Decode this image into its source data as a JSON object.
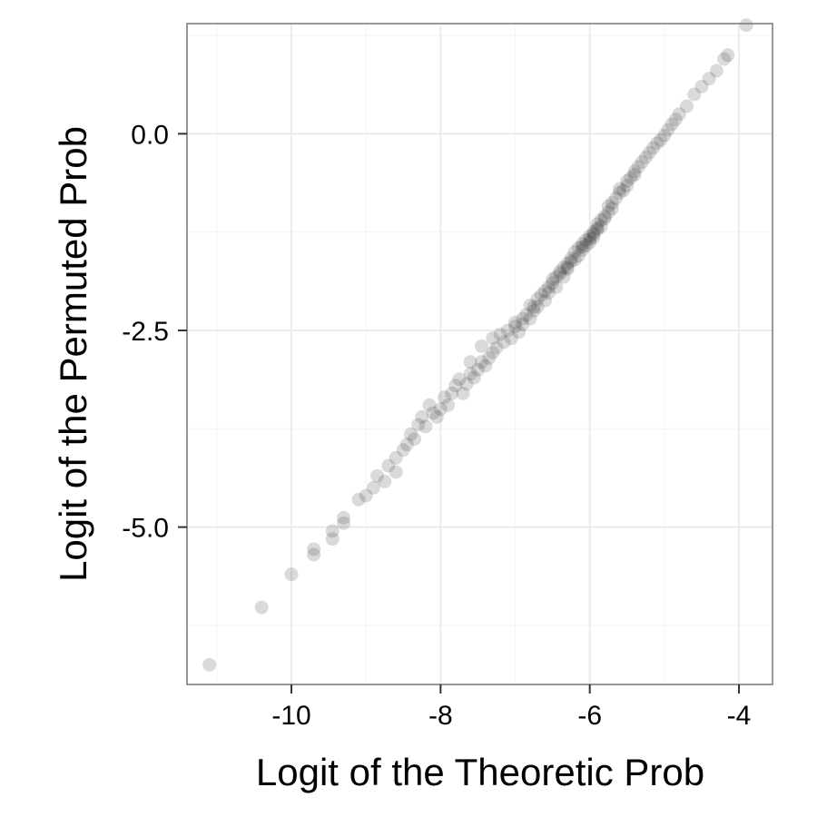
{
  "chart_data": {
    "type": "scatter",
    "xlabel": "Logit of the Theoretic Prob",
    "ylabel": "Logit of the Permuted Prob",
    "xlim": [
      -11.4,
      -3.55
    ],
    "ylim": [
      -7.0,
      1.4
    ],
    "x_ticks": [
      -10,
      -8,
      -6,
      -4
    ],
    "x_tick_labels": [
      "-10",
      "-8",
      "-6",
      "-4"
    ],
    "y_ticks": [
      -5.0,
      -2.5,
      0.0
    ],
    "y_tick_labels": [
      "-5.0",
      "-2.5",
      "0.0"
    ],
    "grid": true,
    "legend": "none",
    "point_color": "#333333",
    "point_opacity": 0.18,
    "colors": {
      "panel_border": "#7f7f7f",
      "grid_major": "#ebebeb",
      "grid_minor": "#f5f5f5"
    },
    "series": [
      {
        "points": [
          [
            -11.1,
            -6.75
          ],
          [
            -10.4,
            -6.02
          ],
          [
            -10.0,
            -5.6
          ],
          [
            -9.7,
            -5.28
          ],
          [
            -9.7,
            -5.35
          ],
          [
            -9.45,
            -5.05
          ],
          [
            -9.45,
            -5.15
          ],
          [
            -9.3,
            -4.88
          ],
          [
            -9.3,
            -4.95
          ],
          [
            -9.1,
            -4.65
          ],
          [
            -9.0,
            -4.6
          ],
          [
            -8.9,
            -4.5
          ],
          [
            -8.85,
            -4.35
          ],
          [
            -8.75,
            -4.42
          ],
          [
            -8.7,
            -4.22
          ],
          [
            -8.6,
            -4.12
          ],
          [
            -8.6,
            -4.3
          ],
          [
            -8.5,
            -4.02
          ],
          [
            -8.45,
            -3.95
          ],
          [
            -8.4,
            -3.82
          ],
          [
            -8.35,
            -3.88
          ],
          [
            -8.3,
            -3.7
          ],
          [
            -8.25,
            -3.6
          ],
          [
            -8.2,
            -3.72
          ],
          [
            -8.15,
            -3.45
          ],
          [
            -8.1,
            -3.55
          ],
          [
            -8.05,
            -3.6
          ],
          [
            -8.0,
            -3.5
          ],
          [
            -7.95,
            -3.35
          ],
          [
            -7.9,
            -3.45
          ],
          [
            -7.85,
            -3.3
          ],
          [
            -7.8,
            -3.2
          ],
          [
            -7.75,
            -3.12
          ],
          [
            -7.7,
            -3.3
          ],
          [
            -7.65,
            -3.18
          ],
          [
            -7.6,
            -2.9
          ],
          [
            -7.6,
            -3.05
          ],
          [
            -7.55,
            -3.1
          ],
          [
            -7.5,
            -3.0
          ],
          [
            -7.45,
            -2.7
          ],
          [
            -7.45,
            -2.9
          ],
          [
            -7.4,
            -2.95
          ],
          [
            -7.35,
            -2.85
          ],
          [
            -7.3,
            -2.6
          ],
          [
            -7.3,
            -2.78
          ],
          [
            -7.25,
            -2.72
          ],
          [
            -7.2,
            -2.55
          ],
          [
            -7.15,
            -2.65
          ],
          [
            -7.1,
            -2.5
          ],
          [
            -7.05,
            -2.6
          ],
          [
            -7.0,
            -2.4
          ],
          [
            -6.95,
            -2.52
          ],
          [
            -6.9,
            -2.35
          ],
          [
            -6.9,
            -2.42
          ],
          [
            -6.85,
            -2.3
          ],
          [
            -6.8,
            -2.18
          ],
          [
            -6.8,
            -2.35
          ],
          [
            -6.75,
            -2.25
          ],
          [
            -6.7,
            -2.1
          ],
          [
            -6.7,
            -2.2
          ],
          [
            -6.65,
            -2.05
          ],
          [
            -6.6,
            -2.12
          ],
          [
            -6.55,
            -1.95
          ],
          [
            -6.55,
            -2.02
          ],
          [
            -6.5,
            -1.9
          ],
          [
            -6.45,
            -1.82
          ],
          [
            -6.45,
            -1.95
          ],
          [
            -6.4,
            -1.78
          ],
          [
            -6.35,
            -1.7
          ],
          [
            -6.35,
            -1.82
          ],
          [
            -6.3,
            -1.65
          ],
          [
            -6.3,
            -1.72
          ],
          [
            -6.25,
            -1.58
          ],
          [
            -6.2,
            -1.6
          ],
          [
            -6.2,
            -1.5
          ],
          [
            -6.15,
            -1.45
          ],
          [
            -6.15,
            -1.55
          ],
          [
            -6.1,
            -1.4
          ],
          [
            -6.1,
            -1.48
          ],
          [
            -6.05,
            -1.35
          ],
          [
            -6.05,
            -1.42
          ],
          [
            -6.0,
            -1.3
          ],
          [
            -6.0,
            -1.38
          ],
          [
            -5.95,
            -1.25
          ],
          [
            -5.95,
            -1.32
          ],
          [
            -5.9,
            -1.15
          ],
          [
            -5.9,
            -1.22
          ],
          [
            -5.85,
            -1.1
          ],
          [
            -5.85,
            -1.18
          ],
          [
            -5.8,
            -1.05
          ],
          [
            -5.75,
            -1.0
          ],
          [
            -5.75,
            -0.92
          ],
          [
            -5.7,
            -0.88
          ],
          [
            -5.7,
            -0.95
          ],
          [
            -5.65,
            -0.82
          ],
          [
            -5.6,
            -0.75
          ],
          [
            -5.6,
            -0.7
          ],
          [
            -5.55,
            -0.72
          ],
          [
            -5.5,
            -0.6
          ],
          [
            -5.5,
            -0.66
          ],
          [
            -5.45,
            -0.56
          ],
          [
            -5.4,
            -0.48
          ],
          [
            -5.4,
            -0.52
          ],
          [
            -5.35,
            -0.42
          ],
          [
            -5.3,
            -0.36
          ],
          [
            -5.25,
            -0.3
          ],
          [
            -5.2,
            -0.24
          ],
          [
            -5.15,
            -0.18
          ],
          [
            -5.1,
            -0.12
          ],
          [
            -5.05,
            -0.08
          ],
          [
            -5.0,
            -0.02
          ],
          [
            -4.95,
            0.05
          ],
          [
            -4.9,
            0.12
          ],
          [
            -4.85,
            0.18
          ],
          [
            -4.8,
            0.25
          ],
          [
            -4.7,
            0.35
          ],
          [
            -4.6,
            0.5
          ],
          [
            -4.5,
            0.6
          ],
          [
            -4.4,
            0.7
          ],
          [
            -4.3,
            0.8
          ],
          [
            -4.2,
            0.95
          ],
          [
            -4.15,
            1.0
          ],
          [
            -3.9,
            1.38
          ],
          [
            -6.5,
            -1.85
          ],
          [
            -6.25,
            -1.62
          ],
          [
            -6.0,
            -1.34
          ],
          [
            -6.3,
            -1.7
          ],
          [
            -6.1,
            -1.44
          ],
          [
            -5.9,
            -1.2
          ],
          [
            -6.4,
            -1.75
          ],
          [
            -5.8,
            -1.08
          ],
          [
            -6.6,
            -2.0
          ],
          [
            -6.75,
            -2.2
          ],
          [
            -7.0,
            -2.45
          ],
          [
            -5.95,
            -1.28
          ]
        ]
      }
    ]
  }
}
